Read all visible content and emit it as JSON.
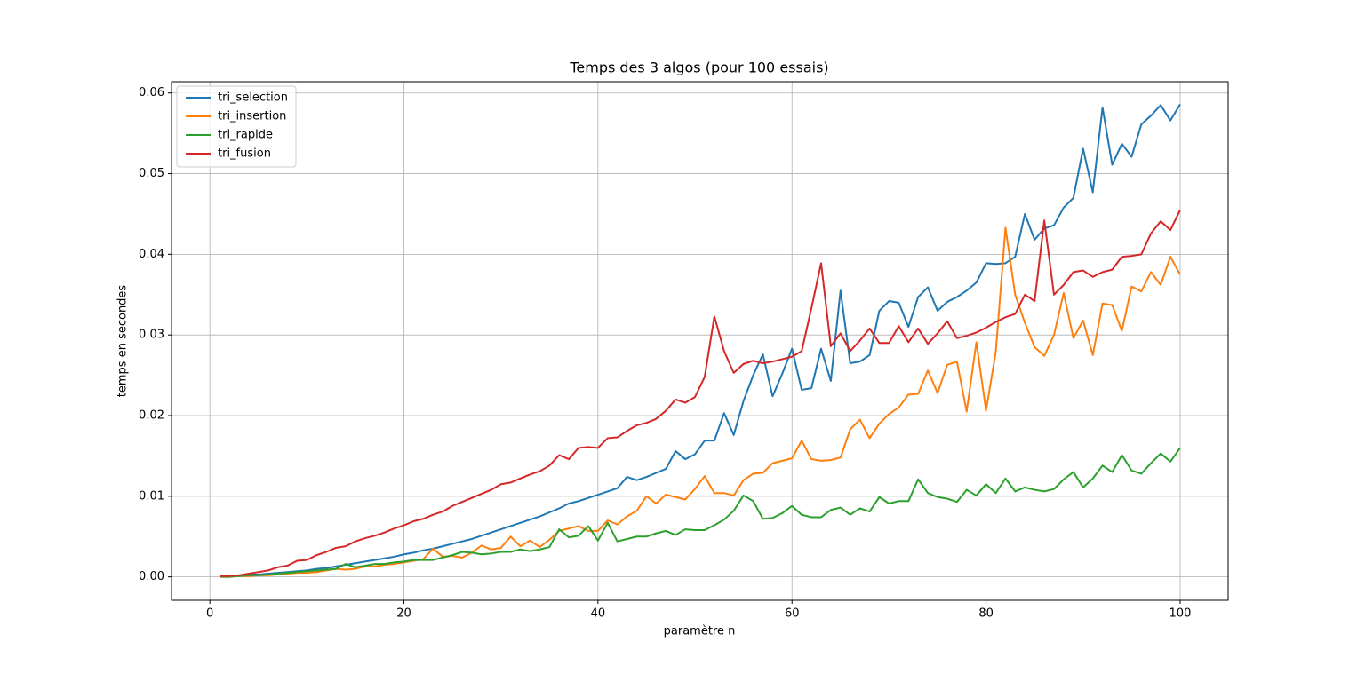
{
  "chart_data": {
    "type": "line",
    "title": "Temps des 3 algos (pour 100 essais)",
    "x_label": "paramètre n",
    "y_label": "temps en secondes",
    "x": [
      1,
      2,
      3,
      4,
      5,
      6,
      7,
      8,
      9,
      10,
      11,
      12,
      13,
      14,
      15,
      16,
      17,
      18,
      19,
      20,
      21,
      22,
      23,
      24,
      25,
      26,
      27,
      28,
      29,
      30,
      31,
      32,
      33,
      34,
      35,
      36,
      37,
      38,
      39,
      40,
      41,
      42,
      43,
      44,
      45,
      46,
      47,
      48,
      49,
      50,
      51,
      52,
      53,
      54,
      55,
      56,
      57,
      58,
      59,
      60,
      61,
      62,
      63,
      64,
      65,
      66,
      67,
      68,
      69,
      70,
      71,
      72,
      73,
      74,
      75,
      76,
      77,
      78,
      79,
      80,
      81,
      82,
      83,
      84,
      85,
      86,
      87,
      88,
      89,
      90,
      91,
      92,
      93,
      94,
      95,
      96,
      97,
      98,
      99,
      100
    ],
    "series": [
      {
        "name": "tri_selection",
        "color": "#1f77b4",
        "values": [
          0,
          0.0001,
          0.0002,
          0.0003,
          0.0003,
          0.0004,
          0.0005,
          0.0006,
          0.0007,
          0.0008,
          0.001,
          0.0011,
          0.0013,
          0.0015,
          0.0017,
          0.0019,
          0.0021,
          0.0023,
          0.0025,
          0.0028,
          0.003,
          0.0033,
          0.0035,
          0.0038,
          0.0041,
          0.0044,
          0.0047,
          0.0051,
          0.0055,
          0.0059,
          0.0063,
          0.0067,
          0.0071,
          0.0075,
          0.008,
          0.0085,
          0.0091,
          0.0094,
          0.0098,
          0.0102,
          0.0106,
          0.011,
          0.0124,
          0.012,
          0.0124,
          0.0129,
          0.0134,
          0.0156,
          0.0146,
          0.0152,
          0.0169,
          0.0169,
          0.0203,
          0.0176,
          0.0218,
          0.025,
          0.0276,
          0.0224,
          0.0252,
          0.0283,
          0.0232,
          0.0234,
          0.0283,
          0.0243,
          0.0355,
          0.0265,
          0.0267,
          0.0275,
          0.033,
          0.0342,
          0.034,
          0.031,
          0.0347,
          0.0359,
          0.033,
          0.0341,
          0.0347,
          0.0355,
          0.0365,
          0.0389,
          0.0388,
          0.0389,
          0.0397,
          0.045,
          0.0418,
          0.0432,
          0.0436,
          0.0458,
          0.047,
          0.0531,
          0.0477,
          0.0582,
          0.0511,
          0.0537,
          0.0521,
          0.0561,
          0.0572,
          0.0585,
          0.0566,
          0.0586
        ]
      },
      {
        "name": "tri_insertion",
        "color": "#ff7f0e",
        "values": [
          0,
          0,
          0.0001,
          0.0001,
          0.0002,
          0.0002,
          0.0003,
          0.0004,
          0.0005,
          0.0005,
          0.0006,
          0.0008,
          0.001,
          0.0009,
          0.001,
          0.0013,
          0.0013,
          0.0015,
          0.0016,
          0.0018,
          0.002,
          0.0022,
          0.0035,
          0.0025,
          0.0026,
          0.0024,
          0.003,
          0.0039,
          0.0034,
          0.0036,
          0.005,
          0.0038,
          0.0045,
          0.0037,
          0.0046,
          0.0057,
          0.006,
          0.0063,
          0.0057,
          0.0057,
          0.007,
          0.0065,
          0.0075,
          0.0082,
          0.01,
          0.0091,
          0.0102,
          0.0099,
          0.0096,
          0.0109,
          0.0125,
          0.0104,
          0.0104,
          0.0101,
          0.012,
          0.0128,
          0.0129,
          0.0141,
          0.0144,
          0.0147,
          0.0169,
          0.0146,
          0.0144,
          0.0145,
          0.0148,
          0.0183,
          0.0195,
          0.0172,
          0.019,
          0.0202,
          0.021,
          0.0226,
          0.0227,
          0.0256,
          0.0228,
          0.0263,
          0.0267,
          0.0205,
          0.0291,
          0.0206,
          0.0279,
          0.0433,
          0.035,
          0.0315,
          0.0285,
          0.0274,
          0.03,
          0.0352,
          0.0296,
          0.0318,
          0.0275,
          0.0339,
          0.0337,
          0.0305,
          0.036,
          0.0354,
          0.0378,
          0.0362,
          0.0397,
          0.0375
        ]
      },
      {
        "name": "tri_rapide",
        "color": "#2ca02c",
        "values": [
          0,
          0,
          0.0001,
          0.0002,
          0.0002,
          0.0003,
          0.0004,
          0.0005,
          0.0006,
          0.0007,
          0.0008,
          0.0009,
          0.001,
          0.0016,
          0.0012,
          0.0014,
          0.0016,
          0.0016,
          0.0018,
          0.0019,
          0.0021,
          0.0021,
          0.0021,
          0.0024,
          0.0027,
          0.0031,
          0.003,
          0.0028,
          0.0029,
          0.0031,
          0.0031,
          0.0034,
          0.0032,
          0.0034,
          0.0037,
          0.0059,
          0.0049,
          0.0051,
          0.0063,
          0.0045,
          0.0067,
          0.0044,
          0.0047,
          0.005,
          0.005,
          0.0054,
          0.0057,
          0.0052,
          0.0059,
          0.0058,
          0.0058,
          0.0064,
          0.0071,
          0.0082,
          0.0101,
          0.0094,
          0.0072,
          0.0073,
          0.0079,
          0.0088,
          0.0077,
          0.0074,
          0.0074,
          0.0083,
          0.0086,
          0.0077,
          0.0085,
          0.0081,
          0.0099,
          0.0091,
          0.0094,
          0.0094,
          0.0121,
          0.0104,
          0.0099,
          0.0097,
          0.0093,
          0.0108,
          0.0101,
          0.0115,
          0.0104,
          0.0122,
          0.0106,
          0.0111,
          0.0108,
          0.0106,
          0.0109,
          0.0121,
          0.013,
          0.0111,
          0.0122,
          0.0138,
          0.013,
          0.0151,
          0.0132,
          0.0128,
          0.0141,
          0.0153,
          0.0143,
          0.016
        ]
      },
      {
        "name": "tri_fusion",
        "color": "#d62728",
        "values": [
          0.0001,
          0.0001,
          0.0002,
          0.0004,
          0.0006,
          0.0008,
          0.0012,
          0.0014,
          0.002,
          0.0021,
          0.0027,
          0.0031,
          0.0036,
          0.0038,
          0.0044,
          0.0048,
          0.0051,
          0.0055,
          0.006,
          0.0064,
          0.0069,
          0.0072,
          0.0077,
          0.0081,
          0.0088,
          0.0093,
          0.0098,
          0.0103,
          0.0108,
          0.0115,
          0.0117,
          0.0122,
          0.0127,
          0.0131,
          0.0138,
          0.0151,
          0.0146,
          0.016,
          0.0161,
          0.016,
          0.0172,
          0.0173,
          0.0181,
          0.0188,
          0.0191,
          0.0196,
          0.0206,
          0.022,
          0.0216,
          0.0223,
          0.0248,
          0.0323,
          0.028,
          0.0253,
          0.0264,
          0.0268,
          0.0265,
          0.0267,
          0.027,
          0.0273,
          0.028,
          0.0333,
          0.0389,
          0.0286,
          0.0302,
          0.028,
          0.0293,
          0.0308,
          0.029,
          0.029,
          0.0311,
          0.0291,
          0.0308,
          0.0289,
          0.0302,
          0.0317,
          0.0296,
          0.0299,
          0.0303,
          0.0309,
          0.0316,
          0.0322,
          0.0326,
          0.035,
          0.0342,
          0.0442,
          0.035,
          0.0362,
          0.0378,
          0.038,
          0.0372,
          0.0378,
          0.0381,
          0.0397,
          0.0398,
          0.04,
          0.0426,
          0.0441,
          0.043,
          0.0455
        ]
      }
    ],
    "xlim": [
      -3.95,
      104.95
    ],
    "xticks": [
      0,
      20,
      40,
      60,
      80,
      100
    ],
    "ylim": [
      -0.0029,
      0.0614
    ],
    "yticks": [
      {
        "value": 0,
        "label": "0.00"
      },
      {
        "value": 0.01,
        "label": "0.01"
      },
      {
        "value": 0.02,
        "label": "0.02"
      },
      {
        "value": 0.03,
        "label": "0.03"
      },
      {
        "value": 0.04,
        "label": "0.04"
      },
      {
        "value": 0.05,
        "label": "0.05"
      },
      {
        "value": 0.06,
        "label": "0.06"
      }
    ],
    "grid": true,
    "legend": "upper-left"
  }
}
